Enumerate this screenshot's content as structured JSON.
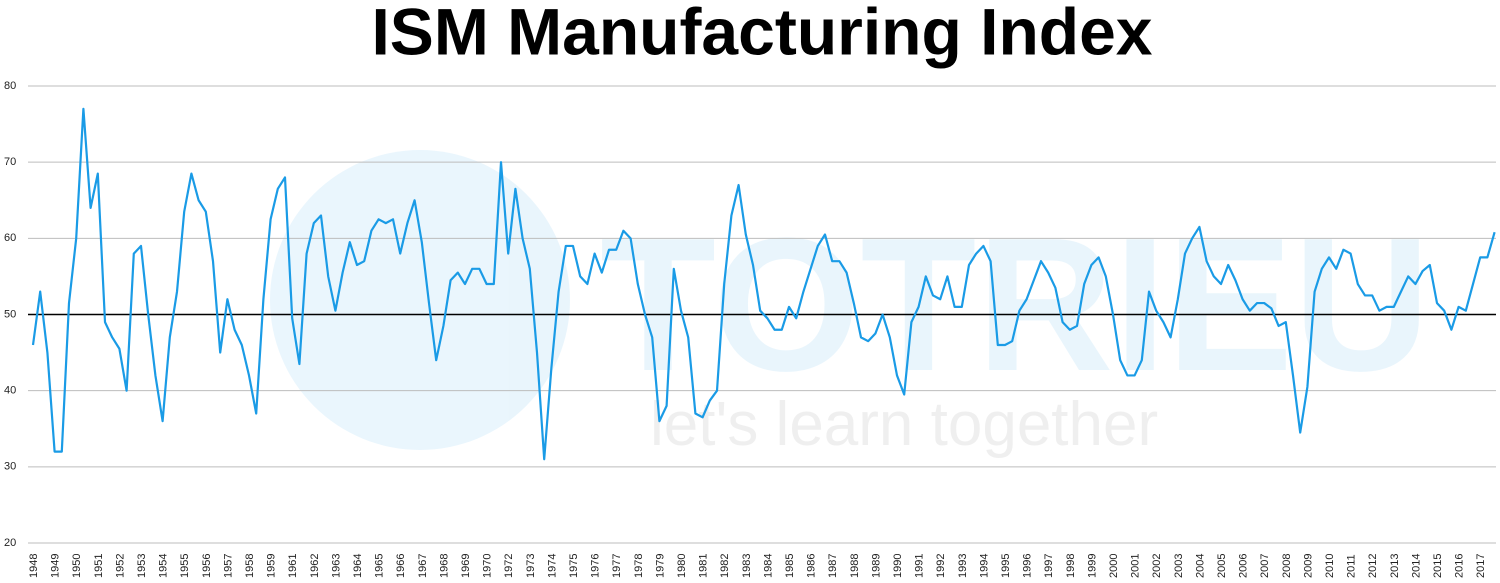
{
  "chart_data": {
    "type": "line",
    "title": "ISM Manufacturing Index",
    "watermark": {
      "brand": "TOTRIEU",
      "tagline": "let's learn together"
    },
    "categories": [
      "1948",
      null,
      null,
      "1949",
      null,
      null,
      "1950",
      null,
      null,
      "1951",
      null,
      null,
      "1952",
      null,
      null,
      "1953",
      null,
      null,
      "1954",
      null,
      null,
      "1955",
      null,
      null,
      "1956",
      null,
      null,
      "1957",
      null,
      null,
      "1958",
      null,
      null,
      "1959",
      null,
      null,
      "1961",
      null,
      null,
      "1962",
      null,
      null,
      "1963",
      null,
      null,
      "1964",
      null,
      null,
      "1965",
      null,
      null,
      "1966",
      null,
      null,
      "1967",
      null,
      null,
      "1968",
      null,
      null,
      "1969",
      null,
      null,
      "1970",
      null,
      null,
      "1972",
      null,
      null,
      "1973",
      null,
      null,
      "1974",
      null,
      null,
      "1975",
      null,
      null,
      "1976",
      null,
      null,
      "1977",
      null,
      null,
      "1978",
      null,
      null,
      "1979",
      null,
      null,
      "1980",
      null,
      null,
      "1981",
      null,
      null,
      "1982",
      null,
      null,
      "1983",
      null,
      null,
      "1984",
      null,
      null,
      "1985",
      null,
      null,
      "1986",
      null,
      null,
      "1987",
      null,
      null,
      "1988",
      null,
      null,
      "1989",
      null,
      null,
      "1990",
      null,
      null,
      "1991",
      null,
      null,
      "1992",
      null,
      null,
      "1993",
      null,
      null,
      "1994",
      null,
      null,
      "1995",
      null,
      null,
      "1996",
      null,
      null,
      "1997",
      null,
      null,
      "1998",
      null,
      null,
      "1999",
      null,
      null,
      "2000",
      null,
      null,
      "2001",
      null,
      null,
      "2002",
      null,
      null,
      "2003",
      null,
      null,
      "2004",
      null,
      null,
      "2005",
      null,
      null,
      "2006",
      null,
      null,
      "2007",
      null,
      null,
      "2008",
      null,
      null,
      "2009",
      null,
      null,
      "2010",
      null,
      null,
      "2011",
      null,
      null,
      "2012",
      null,
      null,
      "2013",
      null,
      null,
      "2014",
      null,
      null,
      "2015",
      null,
      null,
      "2016",
      null,
      null,
      "2017",
      null,
      null
    ],
    "series": [
      {
        "name": "ISM Manufacturing Index",
        "color": "#1a9be6",
        "values": [
          46,
          53,
          45,
          32,
          32,
          51.5,
          60,
          77,
          64,
          68.5,
          49,
          47,
          45.5,
          40,
          58,
          59,
          50,
          42,
          36,
          47,
          53,
          63.5,
          68.5,
          65,
          63.5,
          57,
          45,
          52,
          48,
          46,
          42,
          37,
          52,
          62.5,
          66.5,
          68,
          49.5,
          43.5,
          58,
          62,
          63,
          55,
          50.5,
          55.5,
          59.5,
          56.5,
          57,
          61,
          62.5,
          62,
          62.5,
          58,
          62,
          65,
          59.5,
          51.5,
          44,
          48.5,
          54.5,
          55.5,
          54,
          56,
          56,
          54,
          54,
          70,
          58,
          66.5,
          60,
          56,
          45,
          31,
          43,
          53,
          59,
          59,
          55,
          54,
          58,
          55.5,
          58.5,
          58.5,
          61,
          60,
          54,
          50,
          47,
          36,
          38,
          56,
          50.5,
          47,
          37,
          36.5,
          38.7,
          40,
          54,
          63,
          67,
          60.5,
          56.5,
          50.5,
          49.5,
          48,
          48,
          51,
          49.5,
          53,
          56,
          59,
          60.5,
          57,
          57,
          55.5,
          51.5,
          47,
          46.5,
          47.5,
          50,
          47,
          42,
          39.5,
          49,
          51,
          55,
          52.5,
          52,
          55,
          51,
          51,
          56.5,
          58,
          59,
          57,
          46,
          46,
          46.5,
          50.5,
          52,
          54.5,
          57,
          55.5,
          53.5,
          49,
          48,
          48.5,
          54,
          56.5,
          57.5,
          55,
          50,
          44,
          42,
          42,
          44,
          53,
          50.5,
          49,
          47,
          52,
          58,
          60,
          61.5,
          57,
          55,
          54,
          56.5,
          54.5,
          52,
          50.5,
          51.5,
          51.5,
          50.8,
          48.5,
          49,
          42,
          34.5,
          40.5,
          53,
          56,
          57.5,
          56,
          58.5,
          58,
          54,
          52.5,
          52.5,
          50.5,
          51,
          51,
          53,
          55,
          54,
          55.7,
          56.5,
          51.5,
          50.5,
          48,
          51,
          50.5,
          54,
          57.5,
          57.5,
          60.8
        ]
      }
    ],
    "ylim": [
      20,
      80
    ],
    "yticks": [
      20,
      30,
      40,
      50,
      60,
      70,
      80
    ],
    "grid": true,
    "grid_color": "#bdbdbd",
    "reference_line": 50,
    "reference_color": "#000000"
  }
}
